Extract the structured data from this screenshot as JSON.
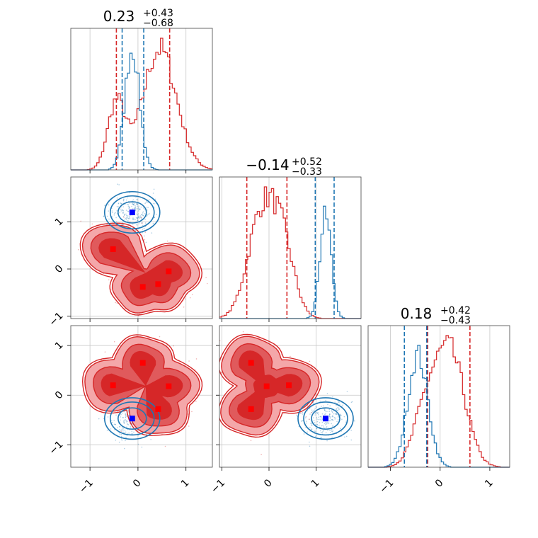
{
  "chart_data": {
    "type": "corner",
    "grid": true,
    "colors": {
      "red": "#d62728",
      "blue": "#1f77b4",
      "red_light": "#f4a7a9",
      "red_mid": "#e05a5c",
      "marker_red": "#ff0000",
      "marker_blue": "#0000ff"
    },
    "params": [
      {
        "range": [
          -1.4,
          1.55
        ],
        "ticks": [
          -1,
          0,
          1
        ],
        "tick_labels": [
          "−1",
          "0",
          "1"
        ],
        "title": {
          "base": "0.23",
          "plus": "+0.43",
          "minus": "−0.68"
        }
      },
      {
        "range": [
          -1.05,
          1.95
        ],
        "ticks": [
          -1,
          0,
          1
        ],
        "tick_labels": [
          "−1",
          "0",
          "1"
        ],
        "title": {
          "base": "−0.14",
          "plus": "+0.52",
          "minus": "−0.33"
        }
      },
      {
        "range": [
          -1.45,
          1.4
        ],
        "ticks": [
          -1,
          0,
          1
        ],
        "tick_labels": [
          "−1",
          "0",
          "1"
        ],
        "title": {
          "base": "0.18",
          "plus": "+0.42",
          "minus": "−0.43"
        }
      }
    ],
    "histograms": [
      {
        "param": 0,
        "red": {
          "modes": [
            [
              -0.45,
              0.18,
              0.55
            ],
            [
              0.45,
              0.35,
              1.0
            ]
          ],
          "quantiles": [
            -0.45,
            0.66
          ]
        },
        "blue": {
          "modes": [
            [
              -0.12,
              0.15,
              1.0
            ]
          ],
          "quantiles": [
            -0.33,
            0.12
          ]
        }
      },
      {
        "param": 1,
        "red": {
          "modes": [
            [
              -0.15,
              0.3,
              1.0
            ],
            [
              0.3,
              0.25,
              0.6
            ]
          ],
          "quantiles": [
            -0.47,
            0.38
          ]
        },
        "blue": {
          "modes": [
            [
              1.2,
              0.12,
              1.0
            ]
          ],
          "quantiles": [
            0.98,
            1.38
          ]
        }
      },
      {
        "param": 2,
        "red": {
          "modes": [
            [
              0.2,
              0.3,
              1.0
            ],
            [
              -0.3,
              0.25,
              0.45
            ]
          ],
          "quantiles": [
            -0.25,
            0.6
          ]
        },
        "blue": {
          "modes": [
            [
              -0.45,
              0.2,
              1.0
            ]
          ],
          "quantiles": [
            -0.72,
            -0.27
          ]
        }
      }
    ],
    "panels2d": [
      {
        "x": 0,
        "y": 1,
        "red_modes": [
          [
            -0.52,
            0.42
          ],
          [
            0.1,
            -0.38
          ],
          [
            0.42,
            -0.32
          ],
          [
            0.64,
            -0.05
          ]
        ],
        "blue_modes": [
          [
            -0.12,
            1.2
          ]
        ]
      },
      {
        "x": 0,
        "y": 2,
        "red_modes": [
          [
            -0.52,
            0.2
          ],
          [
            0.1,
            0.65
          ],
          [
            0.42,
            -0.28
          ],
          [
            0.64,
            0.18
          ]
        ],
        "blue_modes": [
          [
            -0.12,
            -0.47
          ]
        ]
      },
      {
        "x": 1,
        "y": 2,
        "red_modes": [
          [
            -0.38,
            0.65
          ],
          [
            -0.38,
            -0.28
          ],
          [
            -0.05,
            0.18
          ],
          [
            0.42,
            0.2
          ]
        ],
        "blue_modes": [
          [
            1.2,
            -0.47
          ]
        ]
      }
    ]
  }
}
